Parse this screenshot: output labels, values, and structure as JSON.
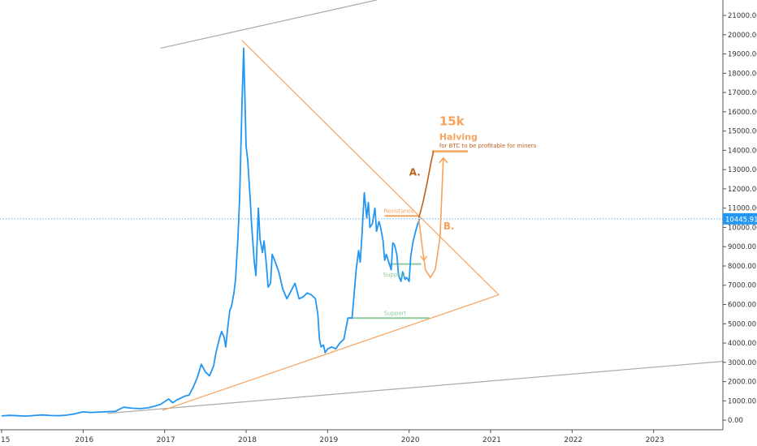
{
  "chart_data": {
    "type": "line",
    "title": "",
    "xlabel": "",
    "ylabel": "",
    "x_ticks": [
      "15",
      "2016",
      "2017",
      "2018",
      "2019",
      "2020",
      "2021",
      "2022",
      "2023"
    ],
    "x_tick_years": [
      2015,
      2016,
      2017,
      2018,
      2019,
      2020,
      2021,
      2022,
      2023
    ],
    "xlim": [
      2014.98,
      2023.85
    ],
    "ylim": [
      -500,
      21800
    ],
    "y_ticks": [
      0,
      1000,
      2000,
      3000,
      4000,
      5000,
      6000,
      7000,
      8000,
      9000,
      10000,
      11000,
      12000,
      13000,
      14000,
      15000,
      16000,
      17000,
      18000,
      19000,
      20000,
      21000
    ],
    "y_tick_labels": [
      "0.00",
      "1000.00",
      "2000.00",
      "3000.00",
      "4000.00",
      "5000.00",
      "6000.00",
      "7000.00",
      "8000.00",
      "9000.00",
      "10000.00",
      "11000.00",
      "12000.00",
      "13000.00",
      "14000.00",
      "15000.00",
      "16000.00",
      "17000.00",
      "18000.00",
      "19000.00",
      "20000.00",
      "21000.00"
    ],
    "grid": false,
    "colors": {
      "price": "#2196f3",
      "orange": "#f7a35c",
      "dark_orange": "#c0601a",
      "support": "#8fcb9b",
      "gray": "#aaaaaa",
      "price_label_bg": "#2196f3",
      "price_label_text": "#ffffff"
    },
    "current_price": 10445.91,
    "current_price_label": "10445.91",
    "series": [
      {
        "x": [
          2015.0,
          2015.1,
          2015.2,
          2015.3,
          2015.4,
          2015.5,
          2015.6,
          2015.7,
          2015.8,
          2015.9,
          2016.0,
          2016.1,
          2016.2,
          2016.3,
          2016.4,
          2016.45,
          2016.5,
          2016.6,
          2016.7,
          2016.8,
          2016.9,
          2016.95,
          2017.0,
          2017.05,
          2017.1,
          2017.15,
          2017.2,
          2017.25,
          2017.3,
          2017.35,
          2017.4,
          2017.43,
          2017.45,
          2017.5,
          2017.55,
          2017.6,
          2017.63,
          2017.67,
          2017.7,
          2017.73,
          2017.75,
          2017.78,
          2017.8,
          2017.82,
          2017.85,
          2017.87,
          2017.9,
          2017.92,
          2017.95,
          2017.97,
          2018.0,
          2018.02,
          2018.05,
          2018.07,
          2018.1,
          2018.12,
          2018.15,
          2018.17,
          2018.2,
          2018.22,
          2018.25,
          2018.27,
          2018.3,
          2018.32,
          2018.35,
          2018.4,
          2018.45,
          2018.5,
          2018.55,
          2018.6,
          2018.65,
          2018.7,
          2018.75,
          2018.8,
          2018.85,
          2018.88,
          2018.9,
          2018.92,
          2018.95,
          2018.97,
          2019.0,
          2019.05,
          2019.1,
          2019.15,
          2019.2,
          2019.25,
          2019.3,
          2019.35,
          2019.38,
          2019.4,
          2019.42,
          2019.45,
          2019.48,
          2019.5,
          2019.52,
          2019.55,
          2019.58,
          2019.6,
          2019.63,
          2019.65,
          2019.68,
          2019.7,
          2019.72,
          2019.75,
          2019.78,
          2019.8,
          2019.82,
          2019.85,
          2019.87,
          2019.9,
          2019.92,
          2019.95,
          2019.97,
          2020.0,
          2020.02,
          2020.05,
          2020.08,
          2020.1,
          2020.13
        ],
        "y": [
          220,
          250,
          230,
          210,
          240,
          270,
          240,
          230,
          260,
          330,
          430,
          400,
          420,
          440,
          460,
          580,
          670,
          620,
          600,
          640,
          750,
          820,
          960,
          1100,
          900,
          1050,
          1150,
          1250,
          1300,
          1700,
          2200,
          2600,
          2900,
          2500,
          2300,
          2800,
          3500,
          4200,
          4600,
          4300,
          3800,
          5000,
          5700,
          5900,
          6600,
          7300,
          9500,
          11500,
          16500,
          19300,
          14200,
          13500,
          11500,
          10000,
          8200,
          7500,
          11000,
          9400,
          8700,
          9300,
          8000,
          6900,
          7100,
          8600,
          8300,
          7700,
          6800,
          6300,
          6700,
          7100,
          6300,
          6400,
          6600,
          6500,
          6300,
          5500,
          4200,
          3800,
          3900,
          3500,
          3700,
          3800,
          3700,
          4000,
          4200,
          5300,
          5300,
          7800,
          8800,
          8200,
          9500,
          11800,
          10500,
          11300,
          10000,
          10200,
          11000,
          9800,
          10300,
          10000,
          9300,
          8300,
          8600,
          8200,
          7800,
          9200,
          9100,
          8600,
          7500,
          7200,
          7700,
          7300,
          7400,
          7200,
          8500,
          9300,
          9800,
          10100,
          10450
        ]
      }
    ],
    "annotations": {
      "title_15k": "15k",
      "halving": "Halving",
      "halving_sub": "for BTC to be profitable for miners",
      "scenario_a": "A.",
      "scenario_b": "B.",
      "resistance": "Resistance",
      "support_upper": "Support",
      "support_lower": "Support"
    },
    "lines": {
      "upper_channel": {
        "x": [
          2016.95,
          2019.6
        ],
        "y": [
          19300,
          21800
        ]
      },
      "lower_channel": {
        "x": [
          2016.3,
          2023.85
        ],
        "y": [
          350,
          3050
        ]
      },
      "triangle_top": {
        "x": [
          2017.95,
          2021.1
        ],
        "y": [
          19700,
          6500
        ]
      },
      "triangle_bottom": {
        "x": [
          2016.97,
          2021.1
        ],
        "y": [
          500,
          6500
        ]
      },
      "resistance": {
        "x": [
          2019.7,
          2020.12
        ],
        "y": [
          10600,
          10600
        ]
      },
      "support_upper": {
        "x": [
          2019.75,
          2020.15
        ],
        "y": [
          8100,
          8100
        ]
      },
      "support_lower": {
        "x": [
          2019.3,
          2020.25
        ],
        "y": [
          5300,
          5300
        ]
      },
      "target": {
        "x": [
          2020.28,
          2020.72
        ],
        "y": [
          13950,
          13950
        ]
      },
      "path_a": {
        "x": [
          2020.12,
          2020.17,
          2020.22,
          2020.27,
          2020.3
        ],
        "y": [
          10500,
          11300,
          12300,
          13400,
          13950
        ]
      },
      "path_b": {
        "x": [
          2020.12,
          2020.16,
          2020.2,
          2020.26,
          2020.32,
          2020.38,
          2020.42
        ],
        "y": [
          10400,
          9000,
          7800,
          7400,
          7800,
          9500,
          13600
        ]
      }
    }
  }
}
